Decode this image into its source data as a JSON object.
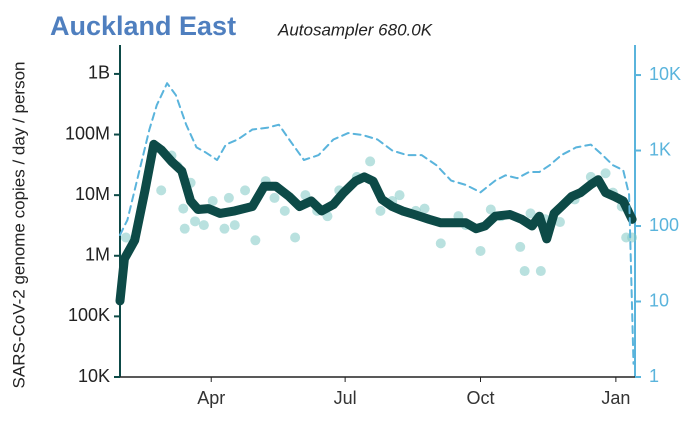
{
  "chart_data": {
    "type": "line",
    "title": "Auckland East",
    "subtitle": "Autosampler 680.0K",
    "ylabel": "SARS-CoV-2 genome copies  / day / person",
    "log_scale": true,
    "xlim": [
      0,
      350
    ],
    "xticks": [
      {
        "value": 62,
        "label": "Apr"
      },
      {
        "value": 153,
        "label": "Jul"
      },
      {
        "value": 245,
        "label": "Oct"
      },
      {
        "value": 337,
        "label": "Jan"
      }
    ],
    "ylim": [
      10000,
      3000000000
    ],
    "yticks": [
      {
        "value": 10000,
        "label": "10K"
      },
      {
        "value": 100000,
        "label": "100K"
      },
      {
        "value": 1000000,
        "label": "1M"
      },
      {
        "value": 10000000,
        "label": "10M"
      },
      {
        "value": 100000000,
        "label": "100M"
      },
      {
        "value": 1000000000,
        "label": "1B"
      }
    ],
    "y2lim": [
      1,
      25000
    ],
    "y2ticks": [
      1,
      10,
      100,
      {
        "value": 1000,
        "label": "1K"
      },
      {
        "value": 10000,
        "label": "10K"
      }
    ],
    "series": [
      {
        "kind": "scatter",
        "color": "#7fc8c4",
        "x": [
          4,
          24,
          28,
          35,
          39,
          43,
          44,
          48,
          51,
          57,
          63,
          71,
          74,
          78,
          85,
          92,
          99,
          105,
          112,
          119,
          126,
          134,
          141,
          149,
          161,
          170,
          177,
          185,
          190,
          201,
          207,
          218,
          230,
          235,
          245,
          252,
          259,
          272,
          275,
          279,
          286,
          289,
          299,
          309,
          320,
          330,
          335,
          341,
          344,
          348
        ],
        "values": [
          2000000,
          63000000,
          12000000,
          45000000,
          30000000,
          6000000,
          2800000,
          16000000,
          3700000,
          3200000,
          8000000,
          2800000,
          9000000,
          3200000,
          12000000,
          1800000,
          17000000,
          9000000,
          5500000,
          2000000,
          10000000,
          5500000,
          4500000,
          12000000,
          20000000,
          36000000,
          5500000,
          8000000,
          10000000,
          5500000,
          6000000,
          1600000,
          4500000,
          3200000,
          1200000,
          5800000,
          4500000,
          1400000,
          560000,
          5000000,
          560000,
          4000000,
          3600000,
          8500000,
          20000000,
          23000000,
          11000000,
          6500000,
          2000000,
          2000000
        ]
      },
      {
        "kind": "line",
        "color": "#0d4a47",
        "x": [
          0,
          3,
          10,
          17,
          23,
          28,
          35,
          42,
          48,
          53,
          60,
          68,
          78,
          90,
          98,
          106,
          115,
          122,
          130,
          137,
          145,
          152,
          160,
          166,
          172,
          178,
          185,
          192,
          200,
          210,
          218,
          227,
          235,
          242,
          248,
          255,
          265,
          273,
          280,
          285,
          290,
          295,
          300,
          307,
          313,
          320,
          325,
          330,
          336,
          342,
          348
        ],
        "values": [
          180000,
          890000,
          1800000,
          12000000,
          69000000,
          56000000,
          36000000,
          25000000,
          8000000,
          5800000,
          6000000,
          5000000,
          5500000,
          6500000,
          14000000,
          14000000,
          9500000,
          6500000,
          8000000,
          5500000,
          7000000,
          11000000,
          17000000,
          20000000,
          17000000,
          8500000,
          6500000,
          5500000,
          4800000,
          4000000,
          3500000,
          3500000,
          3500000,
          2800000,
          3100000,
          4500000,
          4800000,
          4000000,
          3100000,
          4500000,
          1900000,
          5000000,
          6500000,
          9500000,
          11000000,
          15000000,
          18000000,
          11000000,
          9500000,
          8000000,
          4000000
        ]
      },
      {
        "kind": "dashed",
        "color": "#5ab4dc",
        "axis": "y2",
        "x": [
          0,
          5,
          20,
          25,
          32,
          38,
          45,
          52,
          58,
          66,
          72,
          80,
          90,
          100,
          108,
          115,
          125,
          135,
          145,
          155,
          165,
          175,
          185,
          195,
          205,
          215,
          225,
          235,
          245,
          255,
          262,
          270,
          278,
          285,
          292,
          300,
          310,
          320,
          328,
          335,
          342,
          346,
          349
        ],
        "values": [
          76,
          120,
          1900,
          4000,
          7800,
          5400,
          2200,
          1100,
          950,
          750,
          1200,
          1400,
          1900,
          2000,
          2200,
          1400,
          750,
          870,
          1400,
          1700,
          1600,
          1400,
          1000,
          870,
          870,
          640,
          400,
          350,
          280,
          400,
          470,
          430,
          520,
          520,
          640,
          870,
          1100,
          1200,
          870,
          640,
          550,
          260,
          1.5
        ]
      }
    ]
  }
}
